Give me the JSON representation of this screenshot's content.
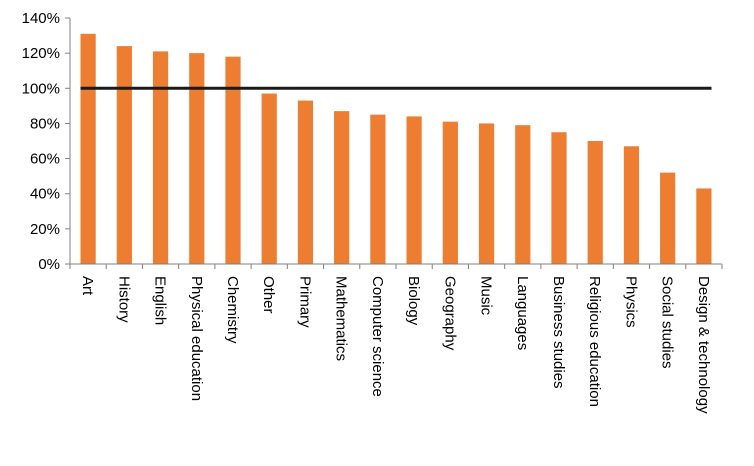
{
  "chart_data": {
    "type": "bar",
    "categories": [
      "Art",
      "History",
      "English",
      "Physical education",
      "Chemistry",
      "Other",
      "Primary",
      "Mathematics",
      "Computer science",
      "Biology",
      "Geography",
      "Music",
      "Languages",
      "Business studies",
      "Religious education",
      "Physics",
      "Social studies",
      "Design & technology"
    ],
    "values": [
      131,
      124,
      121,
      120,
      118,
      97,
      93,
      87,
      85,
      84,
      81,
      80,
      79,
      75,
      70,
      67,
      52,
      43
    ],
    "reference_line": 100,
    "title": "",
    "xlabel": "",
    "ylabel": "",
    "ylim": [
      0,
      140
    ],
    "yticks": [
      "0%",
      "20%",
      "40%",
      "60%",
      "80%",
      "100%",
      "120%",
      "140%"
    ],
    "grid": false,
    "legend": "none",
    "colors": {
      "bar": "#ED7D31",
      "reference_line": "#1a1a1a",
      "axis": "#808080"
    }
  }
}
